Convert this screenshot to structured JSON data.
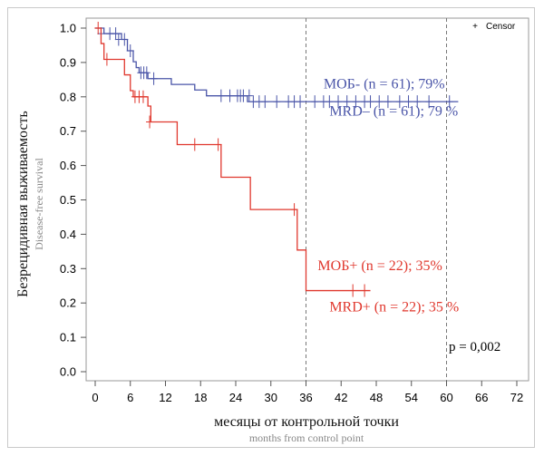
{
  "chart_data": {
    "type": "line",
    "plot_style": "kaplan-meier step curves",
    "ylabel": "Безрецидивная выживаемость",
    "ylabel_secondary": "Disease-free survival",
    "xlabel": "месяцы от контрольной точки",
    "xlabel_secondary": "months from control point",
    "xlim": [
      0,
      72
    ],
    "ylim": [
      0,
      1.0
    ],
    "x_ticks": [
      "0",
      "6",
      "12",
      "18",
      "24",
      "30",
      "36",
      "42",
      "48",
      "54",
      "60",
      "66",
      "72"
    ],
    "y_ticks": [
      "0.0",
      "0.1",
      "0.2",
      "0.3",
      "0.4",
      "0.5",
      "0.6",
      "0.7",
      "0.8",
      "0.9",
      "1.0"
    ],
    "legend": {
      "symbol": "+",
      "label": "Censor",
      "position": "top-right"
    },
    "reference_lines_x": [
      36,
      60
    ],
    "p_value": "p = 0,002",
    "series": [
      {
        "name": "MOБ- / MRD-",
        "color": "#4a55a8",
        "steps": [
          [
            0,
            1.0
          ],
          [
            1.5,
            0.984
          ],
          [
            4.5,
            0.967
          ],
          [
            5.5,
            0.934
          ],
          [
            6.5,
            0.902
          ],
          [
            7.0,
            0.885
          ],
          [
            7.5,
            0.87
          ],
          [
            9.0,
            0.853
          ],
          [
            13.0,
            0.836
          ],
          [
            17.0,
            0.82
          ],
          [
            19.0,
            0.803
          ],
          [
            26.0,
            0.786
          ],
          [
            62.0,
            0.786
          ]
        ],
        "censors": [
          [
            1,
            0.984
          ],
          [
            2.5,
            0.984
          ],
          [
            3.5,
            0.984
          ],
          [
            4,
            0.967
          ],
          [
            5,
            0.967
          ],
          [
            6,
            0.934
          ],
          [
            7.8,
            0.87
          ],
          [
            8.3,
            0.87
          ],
          [
            8.8,
            0.87
          ],
          [
            10,
            0.853
          ],
          [
            21.5,
            0.803
          ],
          [
            23,
            0.803
          ],
          [
            24.3,
            0.803
          ],
          [
            24.8,
            0.803
          ],
          [
            25.3,
            0.803
          ],
          [
            26.3,
            0.803
          ],
          [
            27,
            0.786
          ],
          [
            28,
            0.786
          ],
          [
            29,
            0.786
          ],
          [
            31,
            0.786
          ],
          [
            33,
            0.786
          ],
          [
            34,
            0.786
          ],
          [
            35,
            0.786
          ],
          [
            37.5,
            0.786
          ],
          [
            39,
            0.786
          ],
          [
            40,
            0.786
          ],
          [
            41.5,
            0.786
          ],
          [
            43,
            0.786
          ],
          [
            44.5,
            0.786
          ],
          [
            46,
            0.786
          ],
          [
            47,
            0.786
          ],
          [
            48.5,
            0.786
          ],
          [
            50,
            0.786
          ],
          [
            52,
            0.786
          ],
          [
            53.5,
            0.786
          ],
          [
            55,
            0.786
          ],
          [
            57,
            0.786
          ],
          [
            60.5,
            0.786
          ]
        ],
        "labels": [
          {
            "text": "МОБ- (n = 61); 79%",
            "x": 39.0,
            "y": 0.825
          },
          {
            "text": "MRD– (n = 61); 79 %",
            "x": 40.0,
            "y": 0.745
          }
        ]
      },
      {
        "name": "MOБ+ / MRD+",
        "color": "#e0382e",
        "steps": [
          [
            0,
            1.0
          ],
          [
            1.0,
            0.955
          ],
          [
            1.5,
            0.909
          ],
          [
            5.0,
            0.864
          ],
          [
            6.0,
            0.818
          ],
          [
            6.5,
            0.8
          ],
          [
            9.0,
            0.773
          ],
          [
            9.5,
            0.727
          ],
          [
            14.0,
            0.661
          ],
          [
            21.5,
            0.566
          ],
          [
            26.5,
            0.472
          ],
          [
            34.5,
            0.354
          ],
          [
            36.0,
            0.236
          ],
          [
            47.0,
            0.236
          ]
        ],
        "censors": [
          [
            0.5,
            1.0
          ],
          [
            2.0,
            0.909
          ],
          [
            6.8,
            0.8
          ],
          [
            7.5,
            0.8
          ],
          [
            8.2,
            0.8
          ],
          [
            9.3,
            0.727
          ],
          [
            17.0,
            0.661
          ],
          [
            21.0,
            0.661
          ],
          [
            34.0,
            0.472
          ],
          [
            44.0,
            0.236
          ],
          [
            46.0,
            0.236
          ]
        ],
        "labels": [
          {
            "text": "МОБ+ (n = 22); 35%",
            "x": 38.0,
            "y": 0.295
          },
          {
            "text": "MRD+ (n = 22); 35 %",
            "x": 40.0,
            "y": 0.175
          }
        ]
      }
    ]
  }
}
